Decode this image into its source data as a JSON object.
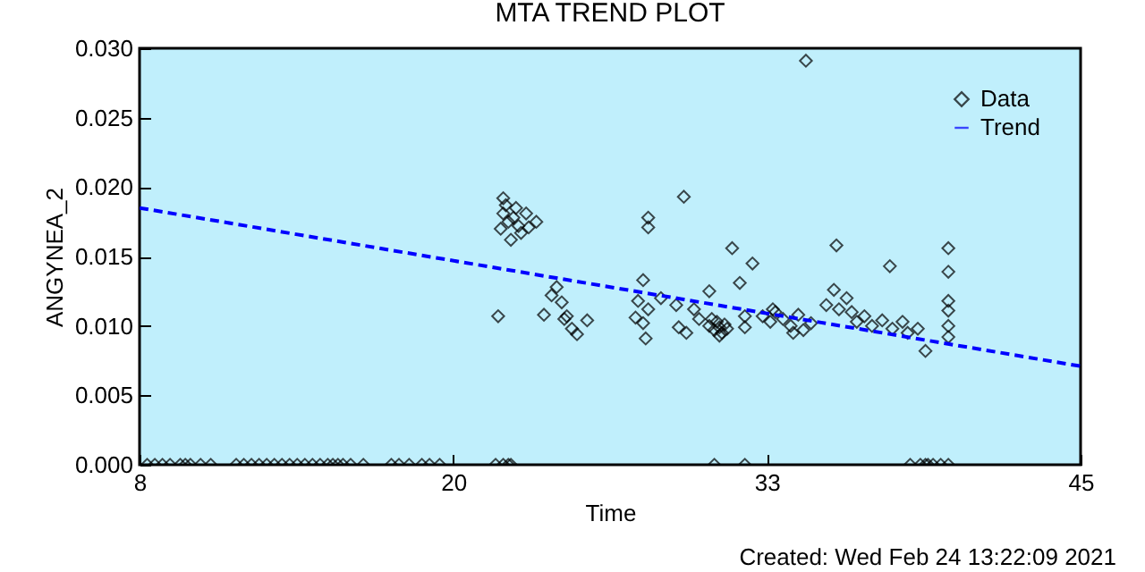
{
  "chart_data": {
    "type": "scatter",
    "title": "MTA TREND PLOT",
    "xlabel": "Time",
    "ylabel": "ANGYNEA_2",
    "annotations": [
      "Created: Wed Feb 24 13:22:09 2021"
    ],
    "xlim": [
      8,
      45
    ],
    "xticks": [
      8,
      {
        "value": 20.333,
        "label": "20"
      },
      {
        "value": 32.667,
        "label": "33"
      },
      45
    ],
    "ylim": [
      0,
      0.03
    ],
    "yticks": [
      {
        "value": 0,
        "label": "0.000"
      },
      {
        "value": 0.005,
        "label": "0.005"
      },
      {
        "value": 0.01,
        "label": "0.010"
      },
      {
        "value": 0.015,
        "label": "0.015"
      },
      {
        "value": 0.02,
        "label": "0.020"
      },
      {
        "value": 0.025,
        "label": "0.025"
      },
      {
        "value": 0.03,
        "label": "0.030"
      }
    ],
    "grid": false,
    "legend": "top right",
    "series": [
      {
        "name": "Data",
        "marker": "diamond",
        "color": "#000000",
        "x": [
          8.3,
          8.6,
          8.9,
          9.2,
          9.6,
          9.8,
          10.0,
          10.4,
          10.8,
          11.8,
          12.1,
          12.4,
          12.7,
          13.0,
          13.3,
          13.6,
          13.9,
          14.2,
          14.5,
          14.8,
          15.1,
          15.4,
          15.6,
          15.8,
          16.0,
          16.3,
          16.8,
          17.9,
          18.2,
          18.6,
          19.1,
          19.4,
          19.8,
          22.0,
          22.3,
          22.5,
          22.6,
          30.6,
          31.8,
          38.3,
          38.7,
          38.9,
          39.0,
          39.2,
          39.5,
          39.8,
          22.1,
          22.3,
          22.4,
          22.3,
          22.5,
          22.2,
          22.7,
          22.9,
          23.0,
          22.6,
          23.3,
          23.6,
          23.2,
          22.8,
          23.9,
          24.2,
          24.4,
          24.6,
          24.8,
          24.7,
          25.2,
          25.6,
          25.0,
          27.5,
          27.6,
          28.0,
          28.0,
          27.8,
          28.0,
          27.8,
          27.9,
          28.5,
          29.1,
          29.2,
          29.4,
          29.5,
          29.8,
          30.0,
          30.4,
          30.4,
          30.6,
          30.7,
          30.8,
          30.9,
          31.0,
          31.1,
          30.5,
          30.8,
          31.3,
          31.6,
          31.8,
          31.8,
          32.1,
          32.5,
          32.8,
          33.0,
          33.3,
          33.6,
          33.9,
          34.1,
          34.4,
          32.9,
          33.7,
          34.2,
          35.0,
          35.3,
          35.4,
          35.5,
          35.8,
          36.0,
          36.2,
          36.5,
          36.8,
          37.2,
          37.5,
          37.6,
          38.0,
          38.2,
          38.6,
          38.9,
          39.8,
          39.8,
          39.8,
          39.8,
          39.8,
          39.8
        ],
        "values": [
          0,
          0,
          0,
          0,
          0,
          0,
          0,
          0,
          0,
          0,
          0,
          0,
          0,
          0,
          0,
          0,
          0,
          0,
          0,
          0,
          0,
          0,
          0,
          0,
          0,
          0,
          0,
          0,
          0,
          0,
          0,
          0,
          0,
          0,
          0,
          0,
          0,
          0,
          0,
          0,
          0,
          0,
          0,
          0,
          0,
          0,
          0.0107,
          0.0192,
          0.0187,
          0.0181,
          0.0175,
          0.017,
          0.0178,
          0.0172,
          0.0167,
          0.0162,
          0.0171,
          0.0175,
          0.0181,
          0.0185,
          0.0108,
          0.0122,
          0.0128,
          0.0117,
          0.0107,
          0.0105,
          0.0094,
          0.0104,
          0.0098,
          0.0106,
          0.0118,
          0.0178,
          0.0171,
          0.0133,
          0.0112,
          0.0102,
          0.0091,
          0.012,
          0.0115,
          0.0099,
          0.0193,
          0.0095,
          0.0112,
          0.0105,
          0.0125,
          0.01,
          0.0097,
          0.0103,
          0.0099,
          0.0095,
          0.0101,
          0.0098,
          0.0105,
          0.0093,
          0.0156,
          0.0131,
          0.0107,
          0.0099,
          0.0145,
          0.0107,
          0.0103,
          0.011,
          0.0105,
          0.01,
          0.0108,
          0.0097,
          0.0102,
          0.0112,
          0.0095,
          0.0291,
          0.0115,
          0.0126,
          0.0158,
          0.0112,
          0.012,
          0.011,
          0.0103,
          0.0107,
          0.01,
          0.0104,
          0.0143,
          0.0098,
          0.0103,
          0.0095,
          0.0098,
          0.0082,
          0.0156,
          0.0139,
          0.0118,
          0.0111,
          0.01,
          0.0092
        ]
      },
      {
        "name": "Trend",
        "type": "line",
        "line_style": "dashed",
        "color": "#0000ff",
        "x": [
          8,
          45
        ],
        "values": [
          0.0185,
          0.0071
        ]
      }
    ]
  }
}
